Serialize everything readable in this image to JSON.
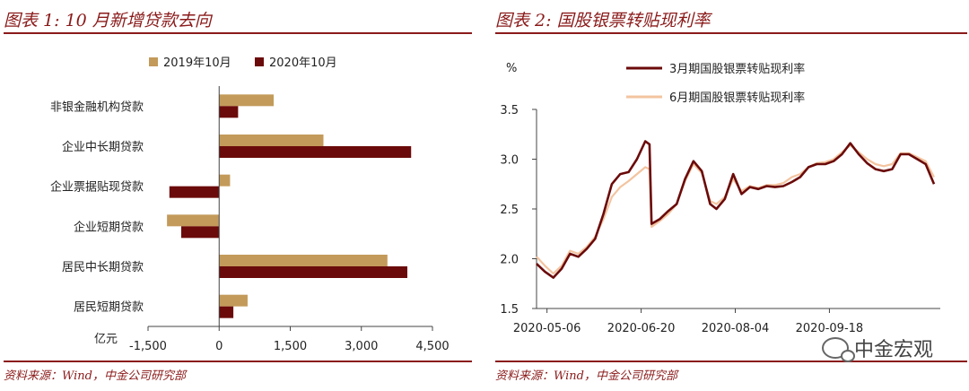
{
  "watermark": {
    "text": "中金宏观",
    "icon": "wechat-icon"
  },
  "left": {
    "title": "图表 1: 10 月新增贷款去向",
    "source": "资料来源：Wind，中金公司研究部",
    "unit_label": "亿元",
    "colors": {
      "2019": "#c39a5a",
      "2020": "#6b0a0a"
    }
  },
  "right": {
    "title": "图表 2:  国股银票转贴现利率",
    "source": "资料来源：Wind，中金公司研究部",
    "unit_label": "%",
    "colors": {
      "m3": "#6b0a0a",
      "m6": "#f3c4a0"
    }
  },
  "chart_data": [
    {
      "type": "bar",
      "orientation": "horizontal",
      "title": "图表 1: 10 月新增贷款去向",
      "xlabel": "亿元",
      "categories": [
        "非银金融机构贷款",
        "企业中长期贷款",
        "企业票据贴现贷款",
        "企业短期贷款",
        "居民中长期贷款",
        "居民短期贷款"
      ],
      "series": [
        {
          "name": "2019年10月",
          "values": [
            1150,
            2200,
            230,
            -1100,
            3550,
            600
          ]
        },
        {
          "name": "2020年10月",
          "values": [
            400,
            4050,
            -1050,
            -800,
            3970,
            300
          ]
        }
      ],
      "xlim": [
        -1500,
        4500
      ],
      "xticks": [
        "-1,500",
        "0",
        "1,500",
        "3,000",
        "4,500"
      ],
      "xtick_values": [
        -1500,
        0,
        1500,
        3000,
        4500
      ],
      "legend": "top",
      "grid": false
    },
    {
      "type": "line",
      "title": "图表 2:  国股银票转贴现利率",
      "ylabel": "%",
      "ylim": [
        1.5,
        3.5
      ],
      "yticks": [
        "1.5",
        "2.0",
        "2.5",
        "3.0",
        "3.5"
      ],
      "ytick_values": [
        1.5,
        2.0,
        2.5,
        3.0,
        3.5
      ],
      "xticks": [
        "2020-05-06",
        "2020-06-20",
        "2020-08-04",
        "2020-09-18"
      ],
      "x_domain": [
        "2020-05-01",
        "2020-11-10"
      ],
      "legend": "top-right",
      "grid": false,
      "series": [
        {
          "name": "3月期国股银票转贴现利率",
          "x": [
            "2020-05-01",
            "2020-05-05",
            "2020-05-09",
            "2020-05-13",
            "2020-05-17",
            "2020-05-21",
            "2020-05-25",
            "2020-05-29",
            "2020-06-02",
            "2020-06-06",
            "2020-06-10",
            "2020-06-14",
            "2020-06-18",
            "2020-06-22",
            "2020-06-24",
            "2020-06-25",
            "2020-06-29",
            "2020-07-03",
            "2020-07-07",
            "2020-07-11",
            "2020-07-15",
            "2020-07-19",
            "2020-07-23",
            "2020-07-26",
            "2020-07-30",
            "2020-08-03",
            "2020-08-07",
            "2020-08-11",
            "2020-08-15",
            "2020-08-19",
            "2020-08-23",
            "2020-08-27",
            "2020-08-31",
            "2020-09-04",
            "2020-09-08",
            "2020-09-12",
            "2020-09-16",
            "2020-09-20",
            "2020-09-24",
            "2020-09-28",
            "2020-10-02",
            "2020-10-06",
            "2020-10-10",
            "2020-10-14",
            "2020-10-18",
            "2020-10-22",
            "2020-10-26",
            "2020-10-30",
            "2020-11-03",
            "2020-11-07"
          ],
          "y": [
            1.95,
            1.87,
            1.81,
            1.9,
            2.05,
            2.02,
            2.1,
            2.2,
            2.45,
            2.75,
            2.85,
            2.87,
            3.0,
            3.18,
            3.15,
            2.35,
            2.4,
            2.48,
            2.55,
            2.8,
            2.98,
            2.88,
            2.55,
            2.5,
            2.6,
            2.85,
            2.65,
            2.72,
            2.7,
            2.73,
            2.72,
            2.73,
            2.77,
            2.82,
            2.92,
            2.95,
            2.95,
            2.98,
            3.05,
            3.16,
            3.05,
            2.96,
            2.9,
            2.88,
            2.9,
            3.05,
            3.05,
            3.0,
            2.95,
            2.75
          ]
        },
        {
          "name": "6月期国股银票转贴现利率",
          "x": [
            "2020-05-01",
            "2020-05-05",
            "2020-05-09",
            "2020-05-13",
            "2020-05-17",
            "2020-05-21",
            "2020-05-25",
            "2020-05-29",
            "2020-06-02",
            "2020-06-06",
            "2020-06-10",
            "2020-06-14",
            "2020-06-18",
            "2020-06-22",
            "2020-06-24",
            "2020-06-25",
            "2020-06-29",
            "2020-07-03",
            "2020-07-07",
            "2020-07-11",
            "2020-07-15",
            "2020-07-19",
            "2020-07-23",
            "2020-07-26",
            "2020-07-30",
            "2020-08-03",
            "2020-08-07",
            "2020-08-11",
            "2020-08-15",
            "2020-08-19",
            "2020-08-23",
            "2020-08-27",
            "2020-08-31",
            "2020-09-04",
            "2020-09-08",
            "2020-09-12",
            "2020-09-16",
            "2020-09-20",
            "2020-09-24",
            "2020-09-28",
            "2020-10-02",
            "2020-10-06",
            "2020-10-10",
            "2020-10-14",
            "2020-10-18",
            "2020-10-22",
            "2020-10-26",
            "2020-10-30",
            "2020-11-03",
            "2020-11-07"
          ],
          "y": [
            2.02,
            1.93,
            1.85,
            1.93,
            2.08,
            2.05,
            2.12,
            2.22,
            2.4,
            2.62,
            2.72,
            2.78,
            2.85,
            2.92,
            2.9,
            2.32,
            2.38,
            2.45,
            2.55,
            2.78,
            2.95,
            2.86,
            2.58,
            2.55,
            2.62,
            2.8,
            2.68,
            2.73,
            2.71,
            2.74,
            2.74,
            2.76,
            2.82,
            2.85,
            2.92,
            2.96,
            2.97,
            3.0,
            3.07,
            3.14,
            3.07,
            3.0,
            2.95,
            2.93,
            2.95,
            3.06,
            3.06,
            3.02,
            2.98,
            2.82
          ]
        }
      ]
    }
  ]
}
